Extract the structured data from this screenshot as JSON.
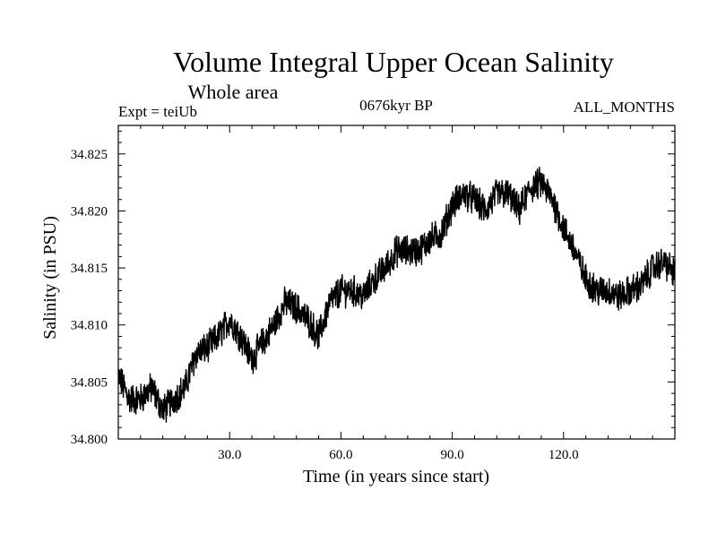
{
  "chart_data": {
    "type": "line",
    "title": "Volume Integral Upper Ocean Salinity",
    "subtitle": "Whole area",
    "experiment_label": "Expt = teiUb",
    "period_label": "0676kyr BP",
    "months_label": "ALL_MONTHS",
    "xlabel": "Time (in years since start)",
    "ylabel": "Salinity (in PSU)",
    "xlim": [
      0,
      150
    ],
    "ylim": [
      34.8,
      34.8275
    ],
    "x_ticks": [
      30,
      60,
      90,
      120
    ],
    "x_tick_labels": [
      "30.0",
      "60.0",
      "90.0",
      "120.0"
    ],
    "y_ticks": [
      34.8,
      34.805,
      34.81,
      34.815,
      34.82,
      34.825
    ],
    "y_tick_labels": [
      "34.800",
      "34.805",
      "34.810",
      "34.815",
      "34.820",
      "34.825"
    ],
    "grid": false,
    "series": [
      {
        "name": "Salinity",
        "color": "#000000",
        "noise_amplitude": 0.0012,
        "trend_x": [
          0,
          3,
          6,
          9,
          12,
          15,
          18,
          21,
          24,
          27,
          30,
          33,
          36,
          39,
          42,
          45,
          48,
          51,
          54,
          57,
          60,
          63,
          66,
          69,
          72,
          75,
          78,
          81,
          84,
          87,
          90,
          93,
          96,
          99,
          102,
          105,
          108,
          111,
          114,
          117,
          120,
          123,
          126,
          129,
          132,
          135,
          138,
          141,
          144,
          147,
          150
        ],
        "trend_y": [
          34.8055,
          34.8035,
          34.8035,
          34.8045,
          34.8025,
          34.8035,
          34.8045,
          34.8075,
          34.808,
          34.809,
          34.8105,
          34.809,
          34.807,
          34.8085,
          34.81,
          34.812,
          34.8115,
          34.8105,
          34.809,
          34.812,
          34.813,
          34.813,
          34.8125,
          34.814,
          34.815,
          34.8165,
          34.8165,
          34.8165,
          34.8175,
          34.818,
          34.8205,
          34.8215,
          34.821,
          34.82,
          34.8215,
          34.8215,
          34.82,
          34.822,
          34.8225,
          34.821,
          34.8185,
          34.8165,
          34.814,
          34.813,
          34.813,
          34.8125,
          34.813,
          34.8135,
          34.815,
          34.8155,
          34.8145
        ]
      }
    ]
  }
}
